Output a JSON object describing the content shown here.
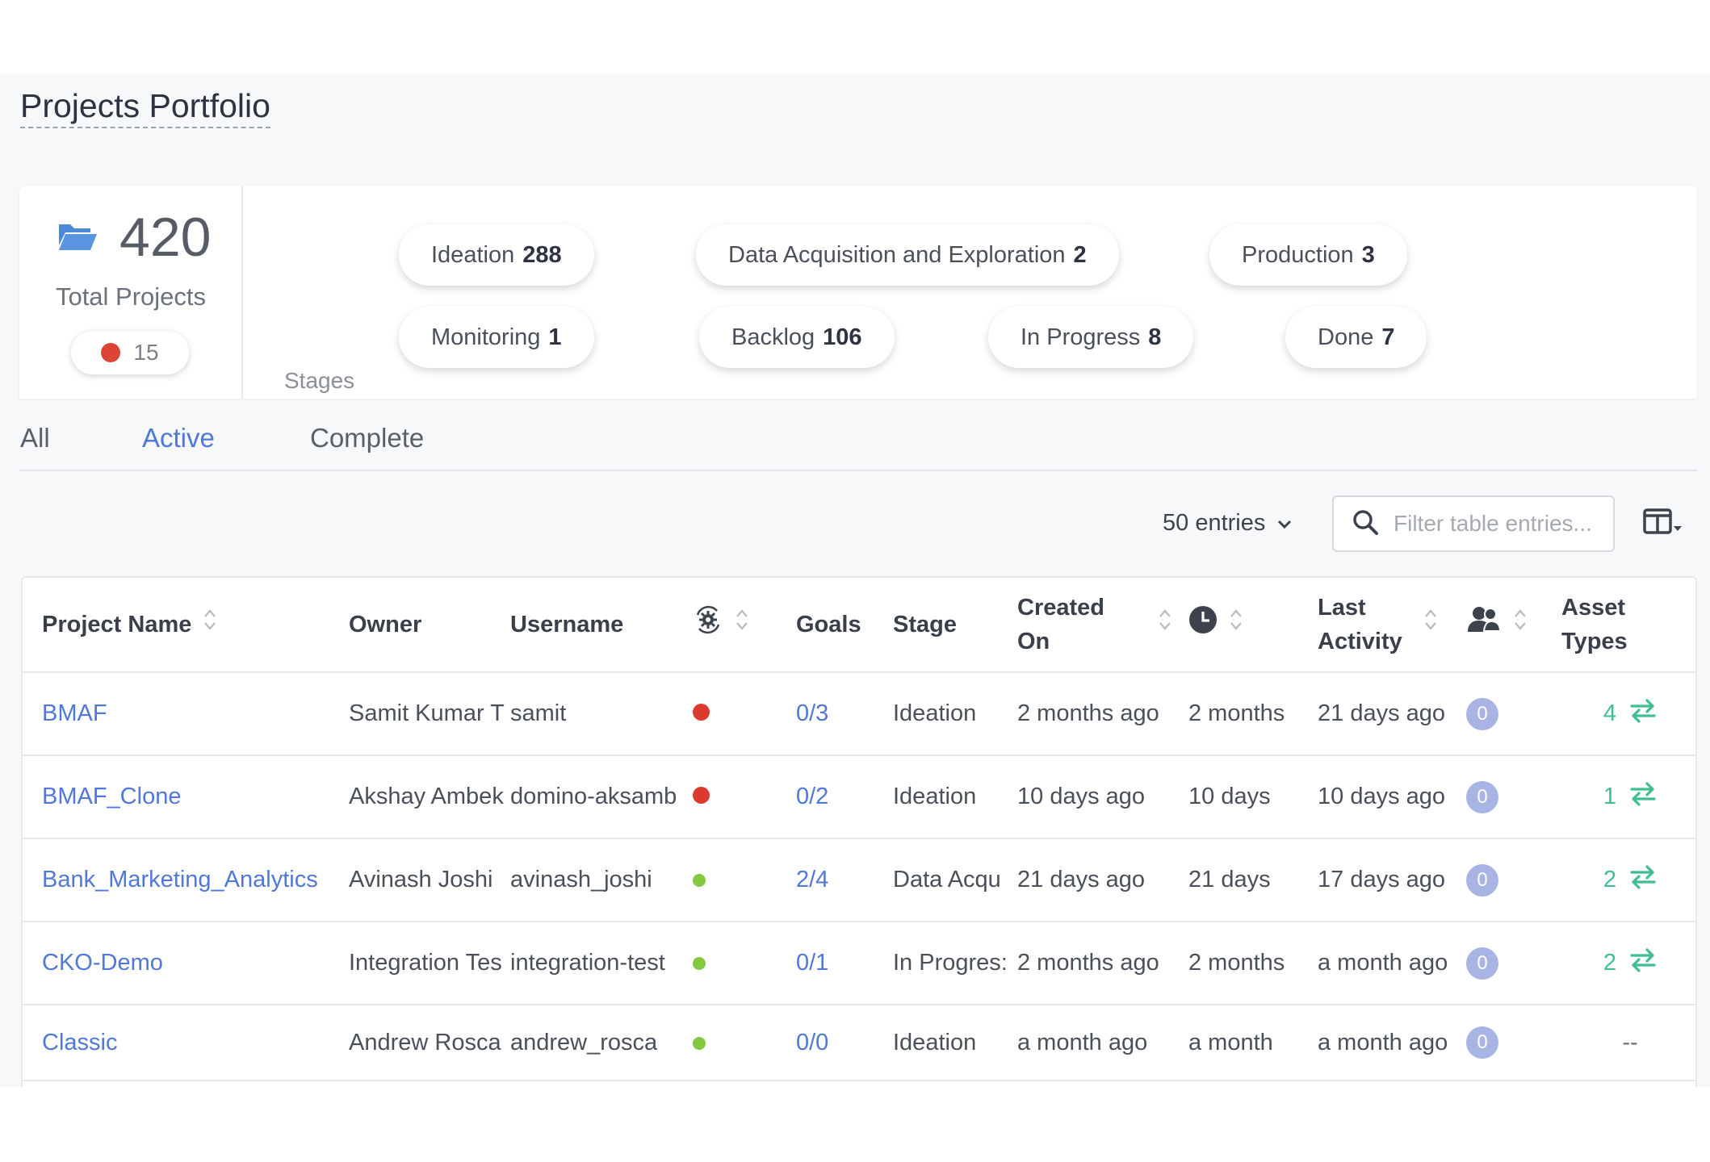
{
  "page": {
    "title": "Projects Portfolio"
  },
  "summary": {
    "total_count": "420",
    "total_label": "Total Projects",
    "status_count": "15",
    "stages_label": "Stages",
    "stages": [
      {
        "name": "Ideation",
        "count": "288"
      },
      {
        "name": "Data Acquisition and Exploration",
        "count": "2"
      },
      {
        "name": "Production",
        "count": "3"
      },
      {
        "name": "Monitoring",
        "count": "1"
      },
      {
        "name": "Backlog",
        "count": "106"
      },
      {
        "name": "In Progress",
        "count": "8"
      },
      {
        "name": "Done",
        "count": "7"
      }
    ]
  },
  "tabs": [
    {
      "label": "All",
      "active": false
    },
    {
      "label": "Active",
      "active": true
    },
    {
      "label": "Complete",
      "active": false
    }
  ],
  "controls": {
    "entries_label": "50 entries",
    "search_placeholder": "Filter table entries..."
  },
  "table": {
    "headers": {
      "project_name": "Project Name",
      "owner": "Owner",
      "username": "Username",
      "goals": "Goals",
      "stage": "Stage",
      "created_on_1": "Created",
      "created_on_2": "On",
      "last_activity_1": "Last",
      "last_activity_2": "Activity",
      "asset_types_1": "Asset",
      "asset_types_2": "Types"
    },
    "rows": [
      {
        "name": "BMAF",
        "owner": "Samit Kumar T",
        "username": "samit",
        "status": "red",
        "goals": "0/3",
        "stage": "Ideation",
        "created": "2 months ago",
        "age": "2 months",
        "last_activity": "21 days ago",
        "collaborators": "0",
        "asset_types": "4"
      },
      {
        "name": "BMAF_Clone",
        "owner": "Akshay Ambek",
        "username": "domino-aksamb",
        "status": "red",
        "goals": "0/2",
        "stage": "Ideation",
        "created": "10 days ago",
        "age": "10 days",
        "last_activity": "10 days ago",
        "collaborators": "0",
        "asset_types": "1"
      },
      {
        "name": "Bank_Marketing_Analytics",
        "owner": "Avinash Joshi",
        "username": "avinash_joshi",
        "status": "green",
        "goals": "2/4",
        "stage": "Data Acqu",
        "created": "21 days ago",
        "age": "21 days",
        "last_activity": "17 days ago",
        "collaborators": "0",
        "asset_types": "2"
      },
      {
        "name": "CKO-Demo",
        "owner": "Integration Tes",
        "username": "integration-test",
        "status": "green",
        "goals": "0/1",
        "stage": "In Progres:",
        "created": "2 months ago",
        "age": "2 months",
        "last_activity": "a month ago",
        "collaborators": "0",
        "asset_types": "2"
      },
      {
        "name": "Classic",
        "owner": "Andrew Rosca",
        "username": "andrew_rosca",
        "status": "green",
        "goals": "0/0",
        "stage": "Ideation",
        "created": "a month ago",
        "age": "a month",
        "last_activity": "a month ago",
        "collaborators": "0",
        "asset_types": "--"
      }
    ]
  },
  "colors": {
    "accent": "#4f78d8",
    "status_red": "#dc3a2e",
    "status_green": "#82c93f",
    "asset_green": "#3fbf8f",
    "badge": "#a8b4e3"
  },
  "icons": {
    "folder": "folder-open-icon",
    "search": "search-icon",
    "columns": "columns-icon",
    "sort": "sort-icon",
    "gear": "gear-refresh-icon",
    "clock": "clock-icon",
    "users": "users-icon",
    "transfer": "transfer-arrows-icon"
  }
}
